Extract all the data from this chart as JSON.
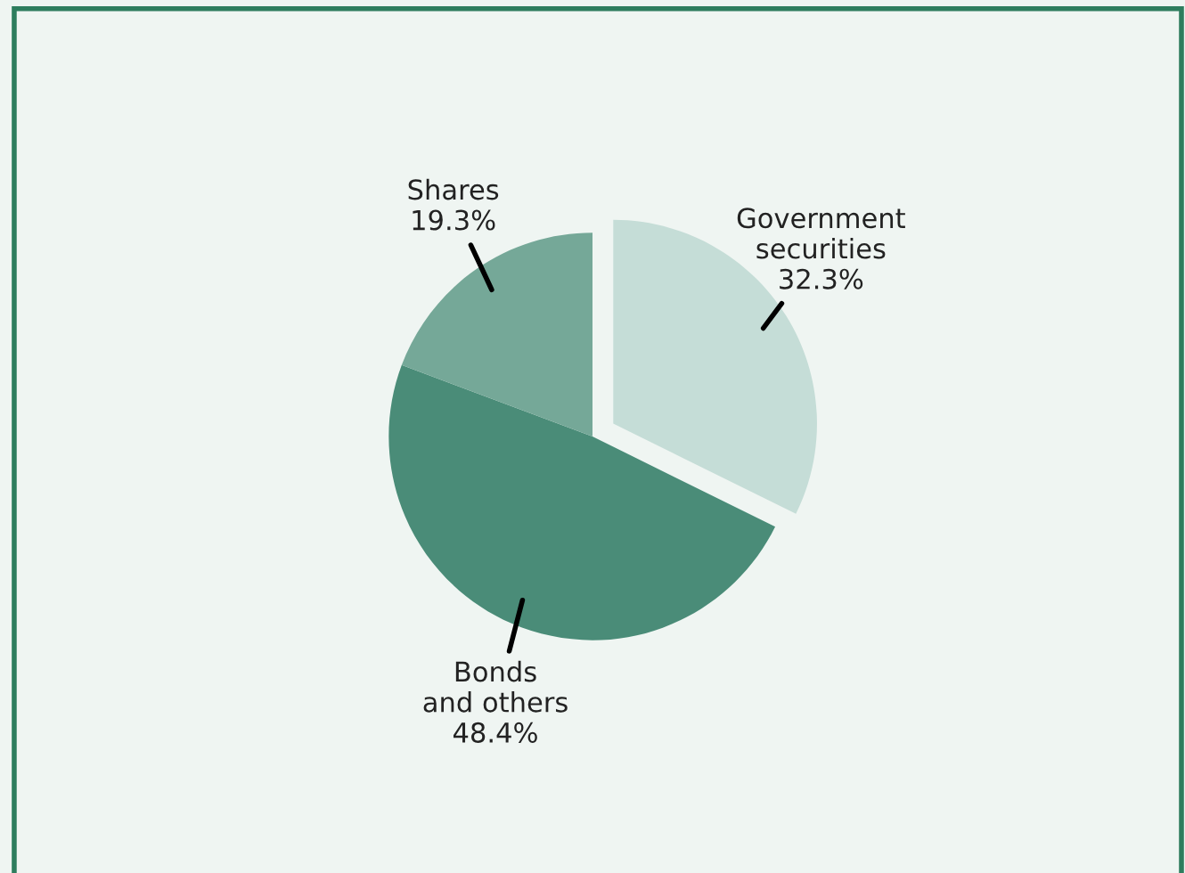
{
  "chart_data": {
    "type": "pie",
    "categories": [
      "Government\nsecurities",
      "Bonds\nand others",
      "Shares"
    ],
    "values": [
      32.3,
      48.4,
      19.3
    ],
    "colors": [
      "#c5ddd7",
      "#4a8c78",
      "#75a898"
    ],
    "value_labels": [
      "32.3%",
      "48.4%",
      "19.3%"
    ]
  }
}
